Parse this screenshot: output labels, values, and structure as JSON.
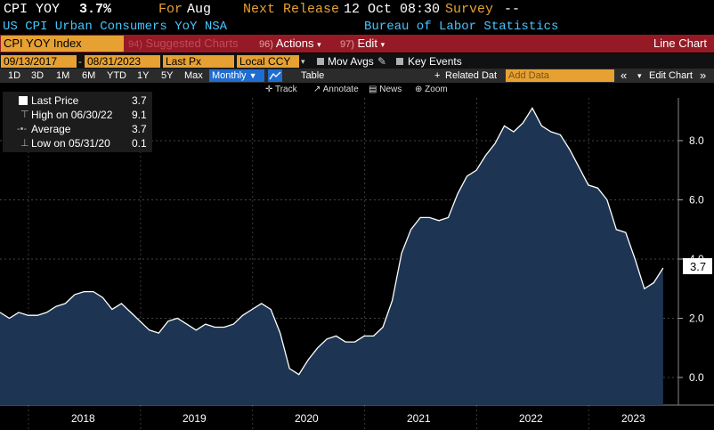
{
  "header": {
    "ticker": "CPI YOY",
    "last_value": "3.7%",
    "for_label": "For",
    "for_period": "Aug",
    "next_release_label": "Next Release",
    "next_release": "12 Oct 08:30",
    "survey_label": "Survey",
    "survey_value": "--",
    "description": "US CPI Urban Consumers YoY NSA",
    "source": "Bureau of Labor Statistics"
  },
  "toolbar": {
    "ticker_box": "CPI YOY Index",
    "suggested_charts_label": "Suggested Charts",
    "suggested_num": "94)",
    "actions_num": "96)",
    "actions_label": "Actions",
    "edit_num": "97)",
    "edit_label": "Edit",
    "chart_type": "Line Chart"
  },
  "inputs": {
    "start_date": "09/13/2017",
    "end_date": "08/31/2023",
    "field": "Last Px",
    "currency": "Local CCY",
    "mov_avgs_label": "Mov Avgs",
    "key_events_label": "Key Events"
  },
  "period_buttons": [
    "1D",
    "3D",
    "1M",
    "6M",
    "YTD",
    "1Y",
    "5Y",
    "Max"
  ],
  "frequency": "Monthly",
  "table_label": "Table",
  "related_data_label": "Related Dat",
  "add_data_placeholder": "Add Data",
  "edit_chart_label": "Edit Chart",
  "tools": [
    "Track",
    "Annotate",
    "News",
    "Zoom"
  ],
  "legend": [
    {
      "label": "Last Price",
      "value": "3.7"
    },
    {
      "label": "High on 06/30/22",
      "value": "9.1"
    },
    {
      "label": "Average",
      "value": "3.7"
    },
    {
      "label": "Low on 05/31/20",
      "value": "0.1"
    }
  ],
  "last_price_tag": "3.7",
  "colors": {
    "orange": "#e7a132",
    "blue_text": "#46c6ff",
    "red_bar": "#951a25",
    "area_fill": "#1d3552",
    "line": "#ffffff"
  },
  "chart_data": {
    "type": "area",
    "x": [
      "2017-09",
      "2017-10",
      "2017-11",
      "2017-12",
      "2018-01",
      "2018-02",
      "2018-03",
      "2018-04",
      "2018-05",
      "2018-06",
      "2018-07",
      "2018-08",
      "2018-09",
      "2018-10",
      "2018-11",
      "2018-12",
      "2019-01",
      "2019-02",
      "2019-03",
      "2019-04",
      "2019-05",
      "2019-06",
      "2019-07",
      "2019-08",
      "2019-09",
      "2019-10",
      "2019-11",
      "2019-12",
      "2020-01",
      "2020-02",
      "2020-03",
      "2020-04",
      "2020-05",
      "2020-06",
      "2020-07",
      "2020-08",
      "2020-09",
      "2020-10",
      "2020-11",
      "2020-12",
      "2021-01",
      "2021-02",
      "2021-03",
      "2021-04",
      "2021-05",
      "2021-06",
      "2021-07",
      "2021-08",
      "2021-09",
      "2021-10",
      "2021-11",
      "2021-12",
      "2022-01",
      "2022-02",
      "2022-03",
      "2022-04",
      "2022-05",
      "2022-06",
      "2022-07",
      "2022-08",
      "2022-09",
      "2022-10",
      "2022-11",
      "2022-12",
      "2023-01",
      "2023-02",
      "2023-03",
      "2023-04",
      "2023-05",
      "2023-06",
      "2023-07",
      "2023-08"
    ],
    "values": [
      2.2,
      2.0,
      2.2,
      2.1,
      2.1,
      2.2,
      2.4,
      2.5,
      2.8,
      2.9,
      2.9,
      2.7,
      2.3,
      2.5,
      2.2,
      1.9,
      1.6,
      1.5,
      1.9,
      2.0,
      1.8,
      1.6,
      1.8,
      1.7,
      1.7,
      1.8,
      2.1,
      2.3,
      2.5,
      2.3,
      1.5,
      0.3,
      0.1,
      0.6,
      1.0,
      1.3,
      1.4,
      1.2,
      1.2,
      1.4,
      1.4,
      1.7,
      2.6,
      4.2,
      5.0,
      5.4,
      5.4,
      5.3,
      5.4,
      6.2,
      6.8,
      7.0,
      7.5,
      7.9,
      8.5,
      8.3,
      8.6,
      9.1,
      8.5,
      8.3,
      8.2,
      7.7,
      7.1,
      6.5,
      6.4,
      6.0,
      5.0,
      4.9,
      4.0,
      3.0,
      3.2,
      3.7
    ],
    "y_ticks": [
      "0.0",
      "2.0",
      "4.0",
      "6.0",
      "8.0"
    ],
    "ylim": [
      -0.7,
      9.7
    ],
    "x_labels": [
      "2018",
      "2019",
      "2020",
      "2021",
      "2022",
      "2023"
    ],
    "grid": true,
    "legend_position": "top-left"
  }
}
